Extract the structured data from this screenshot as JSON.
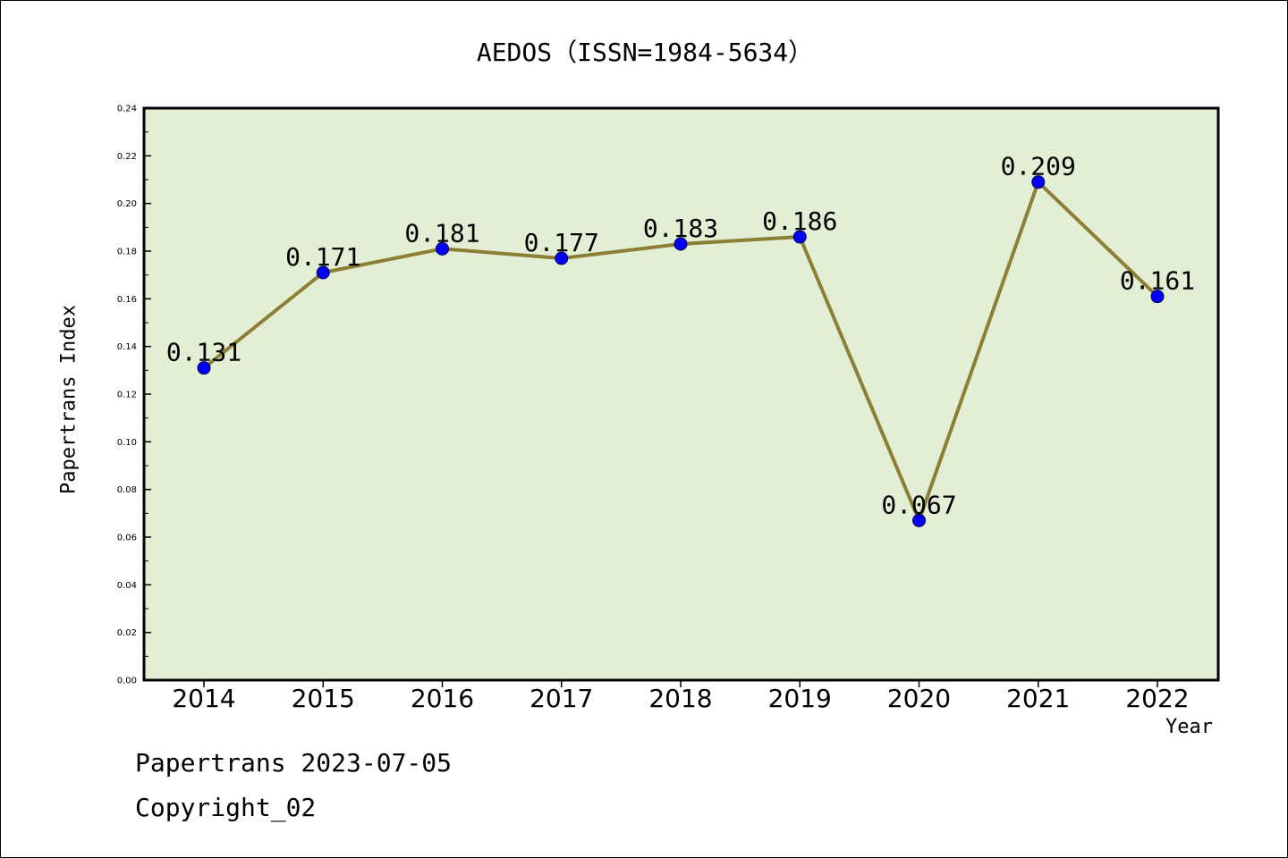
{
  "chart_data": {
    "type": "line",
    "title": "AEDOS（ISSN=1984-5634）",
    "xlabel": "Year",
    "ylabel": "Papertrans Index",
    "categories": [
      "2014",
      "2015",
      "2016",
      "2017",
      "2018",
      "2019",
      "2020",
      "2021",
      "2022"
    ],
    "series": [
      {
        "values": [
          0.131,
          0.171,
          0.181,
          0.177,
          0.183,
          0.186,
          0.067,
          0.209,
          0.161
        ],
        "labels": [
          "0.131",
          "0.171",
          "0.181",
          "0.177",
          "0.183",
          "0.186",
          "0.067",
          "0.209",
          "0.161"
        ]
      }
    ],
    "ylim": [
      0,
      0.24
    ],
    "yticks": [
      "0.00",
      "0.02",
      "0.04",
      "0.06",
      "0.08",
      "0.10",
      "0.12",
      "0.14",
      "0.16",
      "0.18",
      "0.20",
      "0.22",
      "0.24"
    ],
    "grid": false,
    "legend": "none",
    "colors": {
      "plot_background": "#e2efd5",
      "line": "#8c7f35",
      "marker": "#0000ff",
      "axes": "#000000"
    }
  },
  "footer": {
    "line1": "Papertrans 2023-07-05",
    "line2": "Copyright_02"
  }
}
